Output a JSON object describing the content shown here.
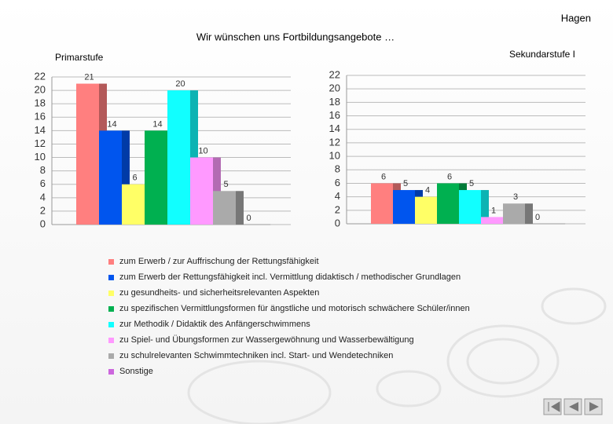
{
  "header": "Hagen",
  "title": "Wir wünschen uns Fortbildungsangebote …",
  "legend": [
    {
      "name": "zum Erwerb / zur Auffrischung der Rettungsfähigkeit",
      "color": "#ff7f7f"
    },
    {
      "name": "zum Erwerb der Rettungsfähigkeit incl. Vermittlung didaktisch / methodischer Grundlagen",
      "color": "#0055ee"
    },
    {
      "name": "zu gesundheits- und sicherheitsrelevanten Aspekten",
      "color": "#ffff66"
    },
    {
      "name": "zu spezifischen Vermittlungsformen für ängstliche und motorisch schwächere Schüler/innen",
      "color": "#00b050"
    },
    {
      "name": "zur Methodik / Didaktik des Anfängerschwimmens",
      "color": "#11ffff"
    },
    {
      "name": "zu Spiel- und Übungsformen zur Wassergewöhnung und Wasserbewältigung",
      "color": "#ff99ff"
    },
    {
      "name": "zu schulrelevanten Schwimmtechniken incl. Start- und Wendetechniken",
      "color": "#aaaaaa"
    },
    {
      "name": "Sonstige",
      "color": "#cc66dd"
    }
  ],
  "chart_data": [
    {
      "type": "bar",
      "subtitle": "Primarstufe",
      "values": [
        21,
        14,
        6,
        14,
        20,
        10,
        5,
        0
      ],
      "ylim": [
        0,
        22
      ],
      "yticks": [
        0,
        2,
        4,
        6,
        8,
        10,
        12,
        14,
        16,
        18,
        20,
        22
      ],
      "grid": true
    },
    {
      "type": "bar",
      "subtitle": "Sekundarstufe I",
      "values": [
        6,
        5,
        4,
        6,
        5,
        1,
        3,
        0
      ],
      "ylim": [
        0,
        22
      ],
      "yticks": [
        0,
        2,
        4,
        6,
        8,
        10,
        12,
        14,
        16,
        18,
        20,
        22
      ],
      "grid": true
    }
  ]
}
